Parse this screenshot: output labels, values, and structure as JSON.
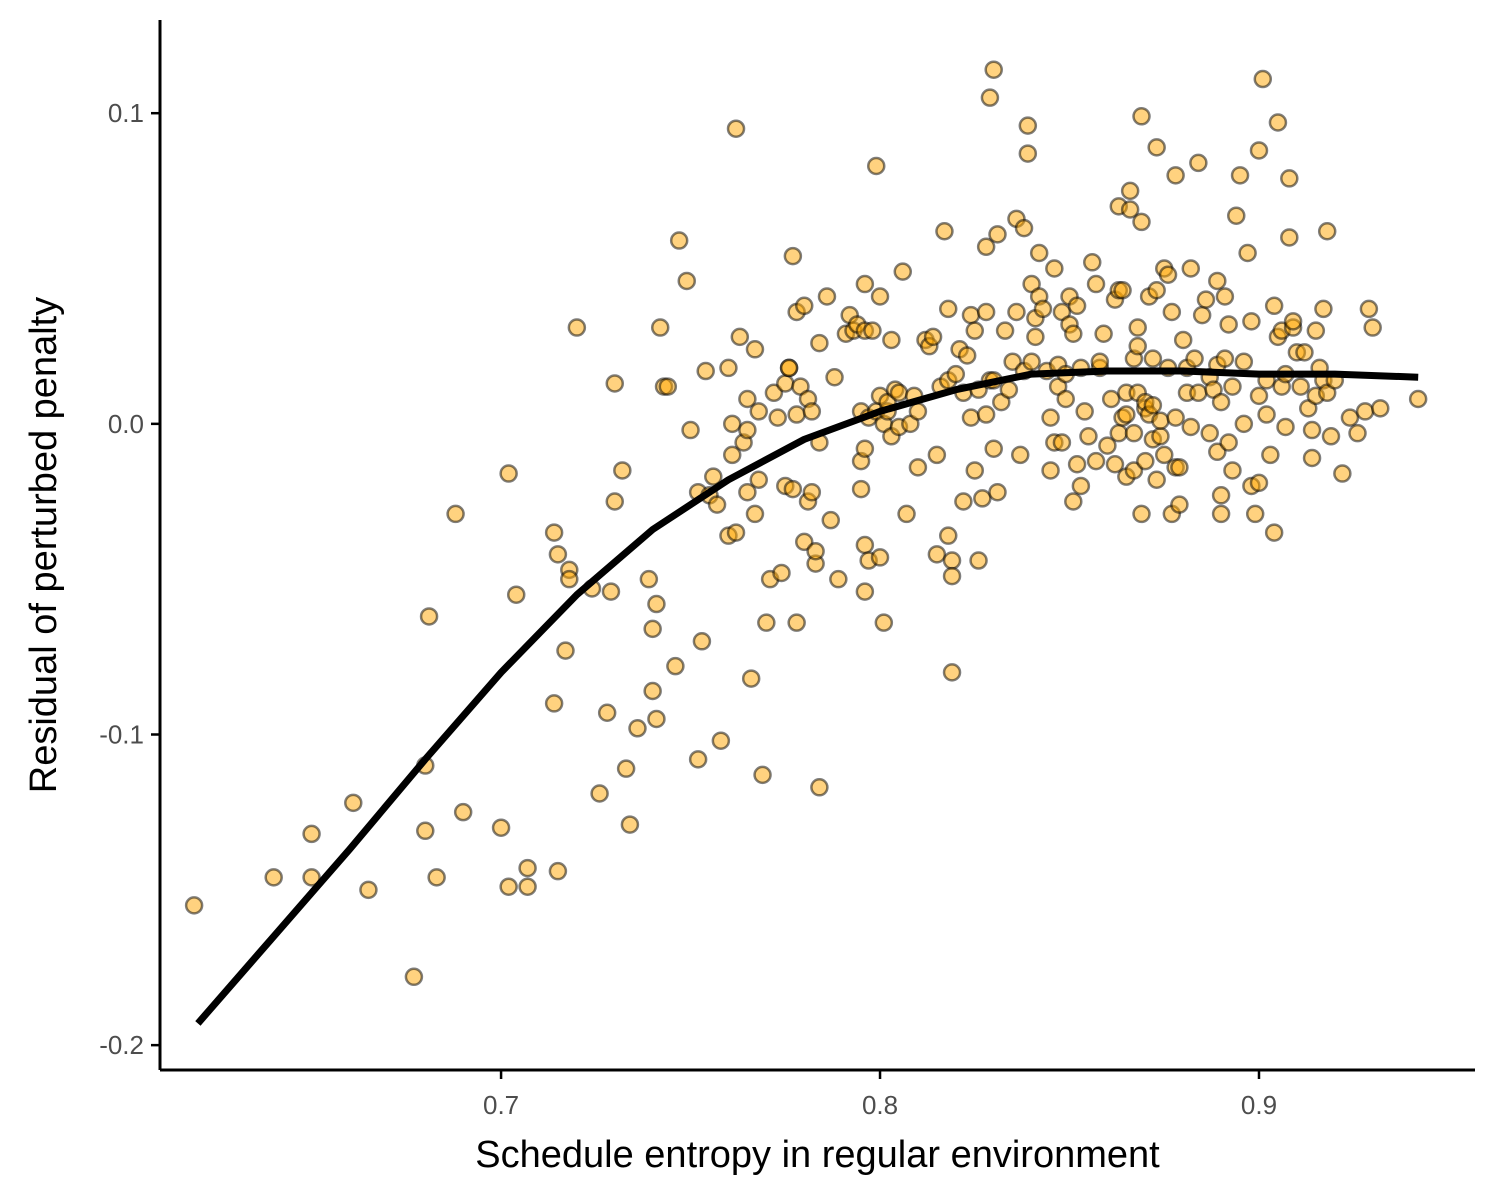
{
  "chart_data": {
    "type": "scatter",
    "title": "",
    "xlabel": "Schedule entropy in regular environment",
    "ylabel": "Residual of perturbed penalty",
    "xlim": [
      0.61,
      0.957
    ],
    "ylim": [
      -0.208,
      0.13
    ],
    "x_ticks": [
      0.7,
      0.8,
      0.9
    ],
    "x_tick_labels": [
      "0.7",
      "0.8",
      "0.9"
    ],
    "y_ticks": [
      -0.2,
      -0.1,
      0.0,
      0.1
    ],
    "y_tick_labels": [
      "-0.2",
      "-0.1",
      "0.0",
      "0.1"
    ],
    "grid": false,
    "legend": "none",
    "colors": {
      "point_fill": "#ffa500",
      "point_stroke": "#000000",
      "fit_line": "#000000"
    },
    "points": [
      [
        0.619,
        -0.155
      ],
      [
        0.64,
        -0.146
      ],
      [
        0.65,
        -0.132
      ],
      [
        0.65,
        -0.146
      ],
      [
        0.661,
        -0.122
      ],
      [
        0.665,
        -0.15
      ],
      [
        0.677,
        -0.178
      ],
      [
        0.68,
        -0.11
      ],
      [
        0.68,
        -0.131
      ],
      [
        0.681,
        -0.062
      ],
      [
        0.683,
        -0.146
      ],
      [
        0.688,
        -0.029
      ],
      [
        0.69,
        -0.125
      ],
      [
        0.7,
        -0.13
      ],
      [
        0.702,
        -0.016
      ],
      [
        0.702,
        -0.149
      ],
      [
        0.704,
        -0.055
      ],
      [
        0.707,
        -0.143
      ],
      [
        0.707,
        -0.149
      ],
      [
        0.714,
        -0.035
      ],
      [
        0.714,
        -0.09
      ],
      [
        0.715,
        -0.042
      ],
      [
        0.715,
        -0.144
      ],
      [
        0.717,
        -0.073
      ],
      [
        0.718,
        -0.047
      ],
      [
        0.718,
        -0.05
      ],
      [
        0.72,
        0.031
      ],
      [
        0.724,
        -0.053
      ],
      [
        0.726,
        -0.119
      ],
      [
        0.728,
        -0.093
      ],
      [
        0.729,
        -0.054
      ],
      [
        0.73,
        -0.025
      ],
      [
        0.73,
        0.013
      ],
      [
        0.732,
        -0.015
      ],
      [
        0.733,
        -0.111
      ],
      [
        0.734,
        -0.129
      ],
      [
        0.736,
        -0.098
      ],
      [
        0.739,
        -0.05
      ],
      [
        0.74,
        -0.086
      ],
      [
        0.74,
        -0.066
      ],
      [
        0.741,
        -0.095
      ],
      [
        0.741,
        -0.058
      ],
      [
        0.742,
        0.031
      ],
      [
        0.743,
        0.012
      ],
      [
        0.744,
        0.012
      ],
      [
        0.746,
        -0.078
      ],
      [
        0.747,
        0.059
      ],
      [
        0.749,
        0.046
      ],
      [
        0.75,
        -0.002
      ],
      [
        0.752,
        -0.022
      ],
      [
        0.752,
        -0.108
      ],
      [
        0.753,
        -0.07
      ],
      [
        0.754,
        0.017
      ],
      [
        0.755,
        -0.023
      ],
      [
        0.756,
        -0.017
      ],
      [
        0.757,
        -0.026
      ],
      [
        0.758,
        -0.102
      ],
      [
        0.76,
        -0.036
      ],
      [
        0.76,
        0.018
      ],
      [
        0.761,
        -0.01
      ],
      [
        0.761,
        0.0
      ],
      [
        0.762,
        -0.035
      ],
      [
        0.762,
        0.095
      ],
      [
        0.763,
        0.028
      ],
      [
        0.764,
        -0.006
      ],
      [
        0.765,
        -0.002
      ],
      [
        0.765,
        0.008
      ],
      [
        0.765,
        -0.022
      ],
      [
        0.766,
        -0.082
      ],
      [
        0.767,
        0.024
      ],
      [
        0.767,
        -0.029
      ],
      [
        0.768,
        -0.018
      ],
      [
        0.768,
        0.004
      ],
      [
        0.769,
        -0.113
      ],
      [
        0.77,
        -0.064
      ],
      [
        0.771,
        -0.05
      ],
      [
        0.772,
        0.01
      ],
      [
        0.773,
        0.002
      ],
      [
        0.774,
        -0.048
      ],
      [
        0.775,
        -0.02
      ],
      [
        0.775,
        0.013
      ],
      [
        0.776,
        0.018
      ],
      [
        0.776,
        0.018
      ],
      [
        0.777,
        0.054
      ],
      [
        0.777,
        -0.021
      ],
      [
        0.778,
        0.036
      ],
      [
        0.778,
        -0.064
      ],
      [
        0.778,
        0.003
      ],
      [
        0.779,
        0.012
      ],
      [
        0.78,
        -0.038
      ],
      [
        0.78,
        0.038
      ],
      [
        0.781,
        0.008
      ],
      [
        0.781,
        -0.025
      ],
      [
        0.782,
        -0.022
      ],
      [
        0.782,
        0.004
      ],
      [
        0.783,
        -0.045
      ],
      [
        0.783,
        -0.041
      ],
      [
        0.784,
        -0.117
      ],
      [
        0.784,
        0.026
      ],
      [
        0.784,
        -0.006
      ],
      [
        0.786,
        0.041
      ],
      [
        0.787,
        -0.031
      ],
      [
        0.788,
        0.015
      ],
      [
        0.789,
        -0.05
      ],
      [
        0.791,
        0.029
      ],
      [
        0.792,
        0.035
      ],
      [
        0.793,
        0.03
      ],
      [
        0.794,
        0.032
      ],
      [
        0.795,
        -0.021
      ],
      [
        0.795,
        0.004
      ],
      [
        0.795,
        -0.012
      ],
      [
        0.796,
        -0.039
      ],
      [
        0.796,
        0.045
      ],
      [
        0.796,
        0.03
      ],
      [
        0.796,
        -0.054
      ],
      [
        0.796,
        -0.008
      ],
      [
        0.797,
        0.002
      ],
      [
        0.797,
        -0.044
      ],
      [
        0.798,
        0.03
      ],
      [
        0.799,
        0.083
      ],
      [
        0.799,
        0.004
      ],
      [
        0.8,
        -0.043
      ],
      [
        0.8,
        0.041
      ],
      [
        0.8,
        0.009
      ],
      [
        0.801,
        -0.064
      ],
      [
        0.801,
        0.0
      ],
      [
        0.802,
        0.004
      ],
      [
        0.802,
        0.007
      ],
      [
        0.803,
        -0.004
      ],
      [
        0.803,
        0.027
      ],
      [
        0.804,
        0.011
      ],
      [
        0.805,
        0.01
      ],
      [
        0.805,
        -0.001
      ],
      [
        0.806,
        0.049
      ],
      [
        0.807,
        -0.029
      ],
      [
        0.808,
        0.0
      ],
      [
        0.809,
        0.009
      ],
      [
        0.81,
        -0.014
      ],
      [
        0.81,
        0.004
      ],
      [
        0.812,
        0.027
      ],
      [
        0.813,
        0.025
      ],
      [
        0.814,
        0.028
      ],
      [
        0.815,
        -0.01
      ],
      [
        0.815,
        -0.042
      ],
      [
        0.816,
        0.012
      ],
      [
        0.817,
        0.062
      ],
      [
        0.818,
        -0.036
      ],
      [
        0.818,
        0.037
      ],
      [
        0.818,
        0.014
      ],
      [
        0.819,
        -0.044
      ],
      [
        0.819,
        -0.08
      ],
      [
        0.819,
        -0.049
      ],
      [
        0.82,
        0.016
      ],
      [
        0.821,
        0.024
      ],
      [
        0.822,
        -0.025
      ],
      [
        0.822,
        0.01
      ],
      [
        0.823,
        0.022
      ],
      [
        0.824,
        0.035
      ],
      [
        0.824,
        0.002
      ],
      [
        0.825,
        -0.015
      ],
      [
        0.825,
        0.03
      ],
      [
        0.826,
        -0.044
      ],
      [
        0.826,
        0.011
      ],
      [
        0.827,
        -0.024
      ],
      [
        0.828,
        0.036
      ],
      [
        0.828,
        0.003
      ],
      [
        0.828,
        0.057
      ],
      [
        0.829,
        0.105
      ],
      [
        0.829,
        0.014
      ],
      [
        0.83,
        -0.008
      ],
      [
        0.83,
        0.014
      ],
      [
        0.83,
        0.114
      ],
      [
        0.831,
        0.061
      ],
      [
        0.831,
        -0.022
      ],
      [
        0.832,
        0.007
      ],
      [
        0.833,
        0.03
      ],
      [
        0.834,
        0.011
      ],
      [
        0.835,
        0.02
      ],
      [
        0.836,
        0.036
      ],
      [
        0.836,
        0.066
      ],
      [
        0.837,
        -0.01
      ],
      [
        0.838,
        0.017
      ],
      [
        0.838,
        0.063
      ],
      [
        0.839,
        0.096
      ],
      [
        0.839,
        0.087
      ],
      [
        0.84,
        0.045
      ],
      [
        0.84,
        0.02
      ],
      [
        0.841,
        0.028
      ],
      [
        0.841,
        0.034
      ],
      [
        0.842,
        0.055
      ],
      [
        0.842,
        0.041
      ],
      [
        0.843,
        0.037
      ],
      [
        0.844,
        0.017
      ],
      [
        0.845,
        0.002
      ],
      [
        0.845,
        -0.015
      ],
      [
        0.846,
        0.05
      ],
      [
        0.846,
        -0.006
      ],
      [
        0.847,
        0.012
      ],
      [
        0.847,
        0.019
      ],
      [
        0.848,
        0.036
      ],
      [
        0.848,
        -0.006
      ],
      [
        0.849,
        0.008
      ],
      [
        0.849,
        0.016
      ],
      [
        0.85,
        0.032
      ],
      [
        0.85,
        0.041
      ],
      [
        0.851,
        -0.025
      ],
      [
        0.851,
        0.029
      ],
      [
        0.852,
        0.038
      ],
      [
        0.852,
        -0.013
      ],
      [
        0.853,
        0.018
      ],
      [
        0.853,
        -0.02
      ],
      [
        0.854,
        0.004
      ],
      [
        0.855,
        -0.004
      ],
      [
        0.856,
        0.052
      ],
      [
        0.857,
        0.045
      ],
      [
        0.857,
        -0.012
      ],
      [
        0.858,
        0.018
      ],
      [
        0.858,
        0.02
      ],
      [
        0.859,
        0.029
      ],
      [
        0.86,
        -0.007
      ],
      [
        0.861,
        0.008
      ],
      [
        0.862,
        0.04
      ],
      [
        0.862,
        -0.013
      ],
      [
        0.863,
        0.043
      ],
      [
        0.863,
        -0.003
      ],
      [
        0.863,
        0.07
      ],
      [
        0.864,
        0.043
      ],
      [
        0.864,
        0.002
      ],
      [
        0.865,
        0.01
      ],
      [
        0.865,
        0.003
      ],
      [
        0.865,
        -0.017
      ],
      [
        0.866,
        0.069
      ],
      [
        0.866,
        0.075
      ],
      [
        0.867,
        -0.015
      ],
      [
        0.867,
        0.021
      ],
      [
        0.867,
        -0.003
      ],
      [
        0.868,
        0.031
      ],
      [
        0.868,
        0.025
      ],
      [
        0.868,
        0.01
      ],
      [
        0.869,
        0.065
      ],
      [
        0.869,
        -0.029
      ],
      [
        0.869,
        0.099
      ],
      [
        0.87,
        0.005
      ],
      [
        0.87,
        0.007
      ],
      [
        0.87,
        -0.012
      ],
      [
        0.871,
        0.003
      ],
      [
        0.871,
        0.041
      ],
      [
        0.872,
        -0.005
      ],
      [
        0.872,
        0.021
      ],
      [
        0.872,
        0.006
      ],
      [
        0.873,
        -0.018
      ],
      [
        0.873,
        0.043
      ],
      [
        0.873,
        0.089
      ],
      [
        0.874,
        -0.004
      ],
      [
        0.874,
        0.001
      ],
      [
        0.875,
        0.05
      ],
      [
        0.875,
        -0.01
      ],
      [
        0.876,
        0.048
      ],
      [
        0.876,
        0.018
      ],
      [
        0.877,
        0.036
      ],
      [
        0.877,
        -0.029
      ],
      [
        0.878,
        0.002
      ],
      [
        0.878,
        -0.014
      ],
      [
        0.878,
        0.08
      ],
      [
        0.879,
        -0.014
      ],
      [
        0.879,
        -0.026
      ],
      [
        0.88,
        0.027
      ],
      [
        0.881,
        0.018
      ],
      [
        0.881,
        0.01
      ],
      [
        0.882,
        0.05
      ],
      [
        0.882,
        -0.001
      ],
      [
        0.883,
        0.021
      ],
      [
        0.884,
        0.084
      ],
      [
        0.884,
        0.01
      ],
      [
        0.885,
        0.035
      ],
      [
        0.886,
        0.04
      ],
      [
        0.887,
        0.015
      ],
      [
        0.887,
        -0.003
      ],
      [
        0.888,
        0.011
      ],
      [
        0.889,
        -0.009
      ],
      [
        0.889,
        0.046
      ],
      [
        0.889,
        0.019
      ],
      [
        0.89,
        -0.029
      ],
      [
        0.89,
        0.007
      ],
      [
        0.89,
        -0.023
      ],
      [
        0.891,
        0.021
      ],
      [
        0.891,
        0.041
      ],
      [
        0.892,
        0.032
      ],
      [
        0.892,
        -0.006
      ],
      [
        0.893,
        -0.015
      ],
      [
        0.893,
        0.012
      ],
      [
        0.894,
        0.067
      ],
      [
        0.895,
        0.08
      ],
      [
        0.896,
        0.0
      ],
      [
        0.896,
        0.02
      ],
      [
        0.897,
        0.055
      ],
      [
        0.898,
        -0.02
      ],
      [
        0.898,
        0.033
      ],
      [
        0.899,
        -0.029
      ],
      [
        0.9,
        0.009
      ],
      [
        0.9,
        0.088
      ],
      [
        0.9,
        -0.019
      ],
      [
        0.901,
        0.111
      ],
      [
        0.902,
        0.003
      ],
      [
        0.902,
        0.014
      ],
      [
        0.903,
        -0.01
      ],
      [
        0.904,
        0.038
      ],
      [
        0.904,
        -0.035
      ],
      [
        0.905,
        0.028
      ],
      [
        0.905,
        0.097
      ],
      [
        0.906,
        0.012
      ],
      [
        0.906,
        0.03
      ],
      [
        0.907,
        0.016
      ],
      [
        0.907,
        -0.001
      ],
      [
        0.908,
        0.06
      ],
      [
        0.908,
        0.079
      ],
      [
        0.909,
        0.031
      ],
      [
        0.909,
        0.033
      ],
      [
        0.91,
        0.023
      ],
      [
        0.911,
        0.012
      ],
      [
        0.912,
        0.023
      ],
      [
        0.913,
        0.005
      ],
      [
        0.914,
        -0.002
      ],
      [
        0.914,
        -0.011
      ],
      [
        0.915,
        0.03
      ],
      [
        0.915,
        0.009
      ],
      [
        0.916,
        0.018
      ],
      [
        0.917,
        0.014
      ],
      [
        0.917,
        0.037
      ],
      [
        0.918,
        0.062
      ],
      [
        0.918,
        0.01
      ],
      [
        0.919,
        -0.004
      ],
      [
        0.92,
        0.014
      ],
      [
        0.922,
        -0.016
      ],
      [
        0.924,
        0.002
      ],
      [
        0.926,
        -0.003
      ],
      [
        0.928,
        0.004
      ],
      [
        0.929,
        0.037
      ],
      [
        0.93,
        0.031
      ],
      [
        0.932,
        0.005
      ],
      [
        0.942,
        0.008
      ]
    ],
    "smooth_line": [
      [
        0.62,
        -0.193
      ],
      [
        0.64,
        -0.165
      ],
      [
        0.66,
        -0.137
      ],
      [
        0.68,
        -0.108
      ],
      [
        0.7,
        -0.08
      ],
      [
        0.72,
        -0.055
      ],
      [
        0.74,
        -0.034
      ],
      [
        0.76,
        -0.018
      ],
      [
        0.78,
        -0.005
      ],
      [
        0.8,
        0.004
      ],
      [
        0.82,
        0.011
      ],
      [
        0.84,
        0.016
      ],
      [
        0.86,
        0.017
      ],
      [
        0.88,
        0.017
      ],
      [
        0.9,
        0.016
      ],
      [
        0.92,
        0.016
      ],
      [
        0.942,
        0.015
      ]
    ]
  }
}
